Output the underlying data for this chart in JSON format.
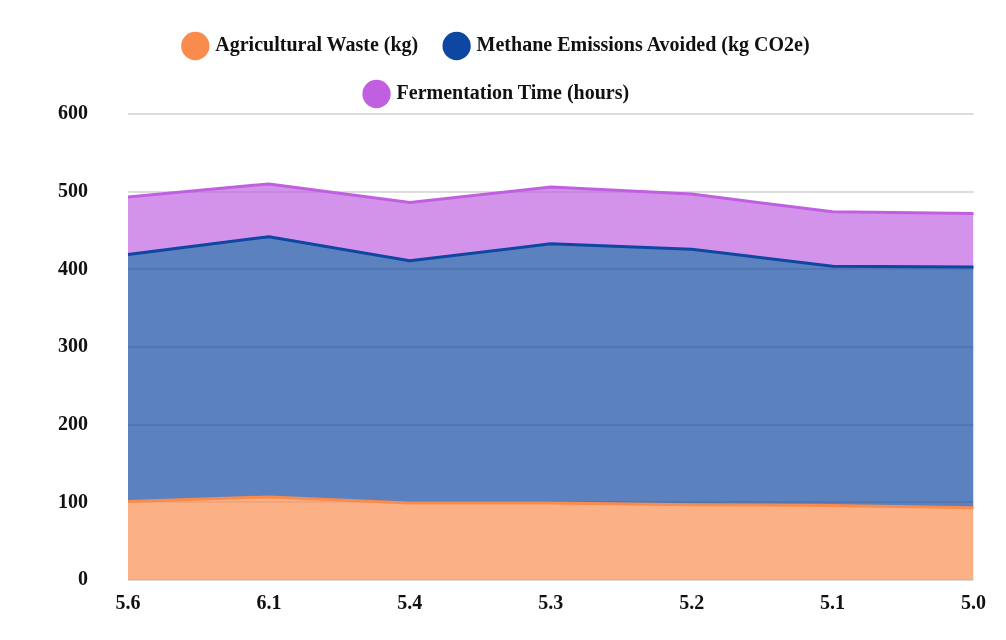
{
  "chart_data": {
    "type": "area",
    "stacked": true,
    "categories": [
      "5.6",
      "6.1",
      "5.4",
      "5.3",
      "5.2",
      "5.1",
      "5.0"
    ],
    "series": [
      {
        "name": "Agricultural Waste (kg)",
        "color": "#f98b4d",
        "values": [
          101,
          107,
          99,
          99,
          97,
          96,
          93
        ]
      },
      {
        "name": "Methane Emissions Avoided (kg CO2e)",
        "color": "#0d47a1",
        "values": [
          318,
          335,
          312,
          334,
          329,
          308,
          310
        ]
      },
      {
        "name": "Fermentation Time (hours)",
        "color": "#c060e0",
        "values": [
          74,
          68,
          75,
          73,
          71,
          70,
          69
        ]
      }
    ],
    "ylim": [
      0,
      600
    ],
    "yticks": [
      0,
      100,
      200,
      300,
      400,
      500,
      600
    ],
    "grid": "y",
    "legend": "top",
    "marker": "none"
  }
}
